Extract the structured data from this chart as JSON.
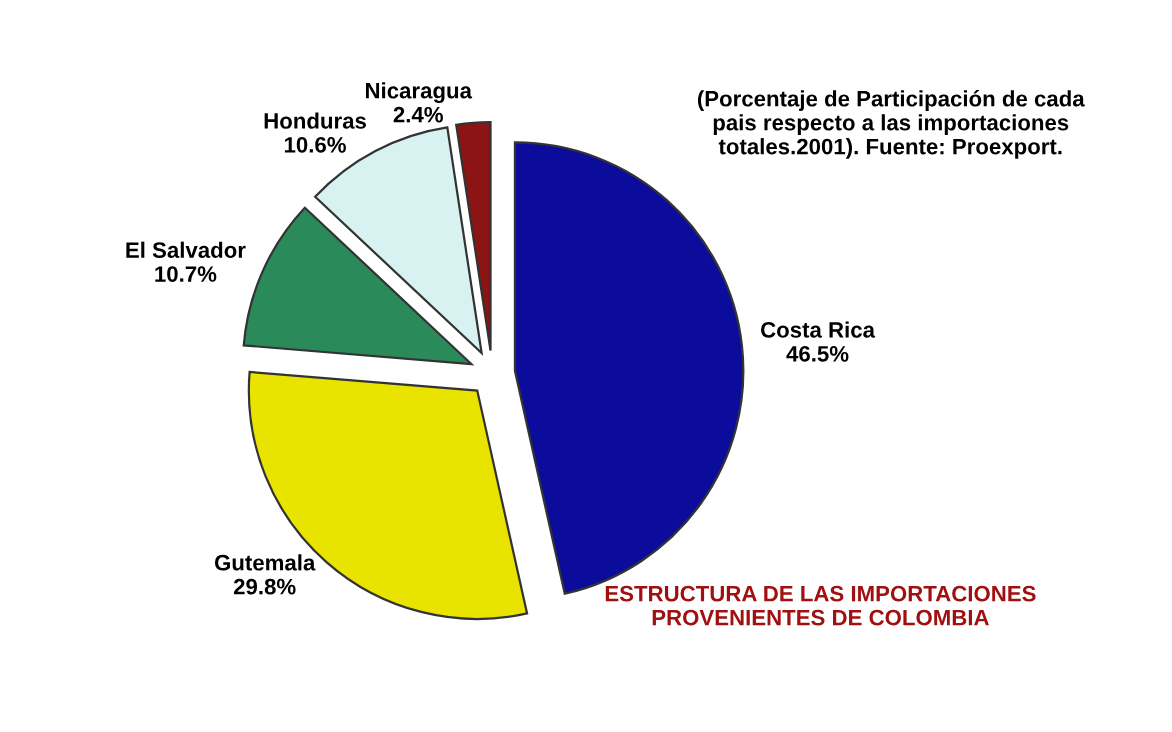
{
  "chart_data": {
    "type": "pie",
    "title": "ESTRUCTURA DE LAS IMPORTACIONES\nPROVENIENTES DE COLOMBIA",
    "categories": [
      "Costa Rica",
      "Gutemala",
      "El Salvador",
      "Honduras",
      "Nicaragua"
    ],
    "values": [
      46.5,
      29.8,
      10.7,
      10.6,
      2.4
    ],
    "value_labels": [
      "46.5%",
      "29.8%",
      "10.7%",
      "10.6%",
      "2.4%"
    ],
    "colors": [
      "#0c0c9c",
      "#e8e400",
      "#2a8a5a",
      "#d8f2f2",
      "#8c1414"
    ],
    "annotations": [
      "(Porcentaje de Participación de cada\npais respecto a las importaciones\ntotales.2001). Fuente: Proexport."
    ]
  }
}
